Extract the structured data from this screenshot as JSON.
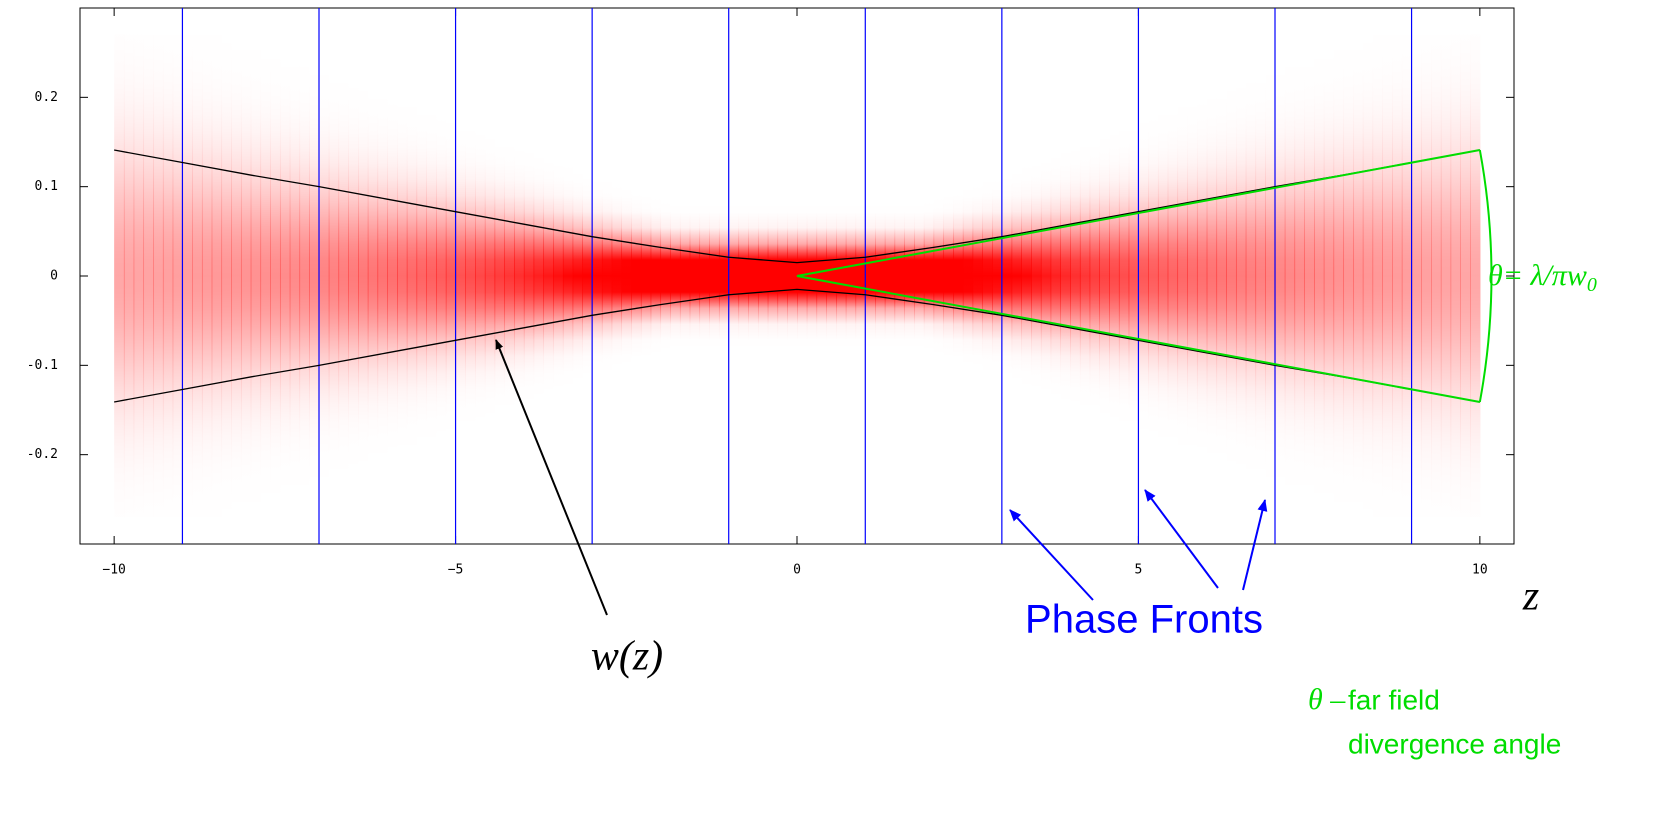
{
  "chart_data": {
    "type": "line",
    "x": [
      -10,
      -9,
      -8,
      -7,
      -6,
      -5,
      -4,
      -3,
      -2,
      -1,
      0,
      1,
      2,
      3,
      4,
      5,
      6,
      7,
      8,
      9,
      10
    ],
    "series": [
      {
        "color": "#000000",
        "values": [
          0.141,
          0.127,
          0.113,
          0.1,
          0.086,
          0.072,
          0.058,
          0.044,
          0.032,
          0.021,
          0.015,
          0.021,
          0.032,
          0.044,
          0.058,
          0.072,
          0.086,
          0.1,
          0.113,
          0.127,
          0.141
        ]
      },
      {
        "color": "#000000",
        "values": [
          -0.141,
          -0.127,
          -0.113,
          -0.1,
          -0.086,
          -0.072,
          -0.058,
          -0.044,
          -0.032,
          -0.021,
          -0.015,
          -0.021,
          -0.032,
          -0.044,
          -0.058,
          -0.072,
          -0.086,
          -0.1,
          -0.113,
          -0.127,
          -0.141
        ]
      }
    ],
    "beam_color": "#ff0000",
    "phase_fronts": {
      "color": "#0000ff",
      "x": [
        -9,
        -7,
        -5,
        -3,
        -1,
        1,
        3,
        5,
        7,
        9
      ]
    },
    "divergence_color": "#00dd00",
    "xlim": [
      -10.5,
      10.5
    ],
    "ylim": [
      -0.3,
      0.3
    ],
    "xticks": [
      {
        "value": -10,
        "label": "−10"
      },
      {
        "value": -5,
        "label": "−5"
      },
      0,
      5,
      10
    ],
    "yticks": [
      0.2,
      0.1,
      0,
      -0.1,
      -0.2
    ],
    "xlabel": "z",
    "annotations": {
      "wz": "w(z)",
      "phase_fronts": "Phase Fronts",
      "theta_formula": {
        "text": "θ= λ/πw",
        "sub": "0"
      },
      "theta_symbol": "θ –",
      "far_field": "far field",
      "divergence_angle": "divergence angle"
    }
  }
}
